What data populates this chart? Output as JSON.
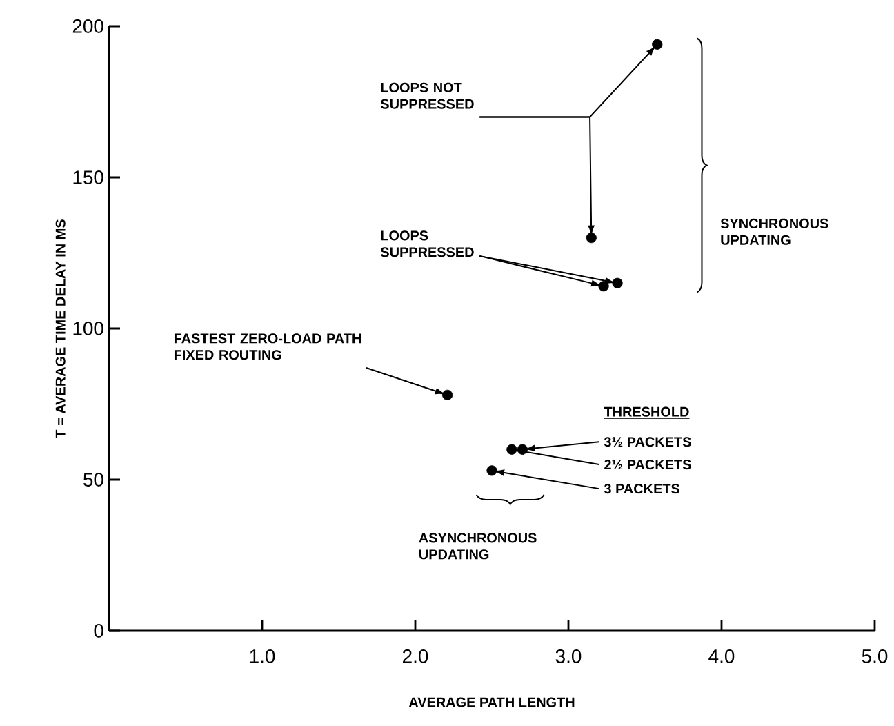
{
  "chart_data": {
    "type": "scatter",
    "xlabel": "AVERAGE PATH LENGTH",
    "ylabel": "T = AVERAGE TIME DELAY IN MS",
    "x": [
      2.21,
      2.5,
      2.63,
      2.7,
      3.15,
      3.23,
      3.32,
      3.58
    ],
    "values": [
      78,
      53,
      60,
      60,
      130,
      114,
      115,
      194
    ],
    "color": "#000000",
    "marker": "circle",
    "xlim": [
      0,
      5
    ],
    "ylim": [
      0,
      200
    ],
    "xticks": [
      {
        "value": 1,
        "label": "1.0"
      },
      {
        "value": 2,
        "label": "2.0"
      },
      {
        "value": 3,
        "label": "3.0"
      },
      {
        "value": 4,
        "label": "4.0"
      },
      {
        "value": 5,
        "label": "5.0"
      }
    ],
    "yticks": [
      0,
      50,
      100,
      150,
      200
    ],
    "grid": false,
    "annotations": [
      {
        "text": "LOOPS NOT SUPPRESSED",
        "x": 3.58,
        "y": 194
      },
      {
        "text": "LOOPS SUPPRESSED",
        "x": 3.23,
        "y": 114
      },
      {
        "text": "FASTEST ZERO-LOAD PATH FIXED ROUTING",
        "x": 2.21,
        "y": 78
      },
      "THRESHOLD",
      {
        "text": "3½ PACKETS",
        "x": 2.7,
        "y": 60
      },
      {
        "text": "2½ PACKETS",
        "x": 2.63,
        "y": 60
      },
      {
        "text": "3 PACKETS",
        "x": 2.5,
        "y": 53
      },
      "SYNCHRONOUS UPDATING",
      "ASYNCHRONOUS UPDATING"
    ]
  }
}
